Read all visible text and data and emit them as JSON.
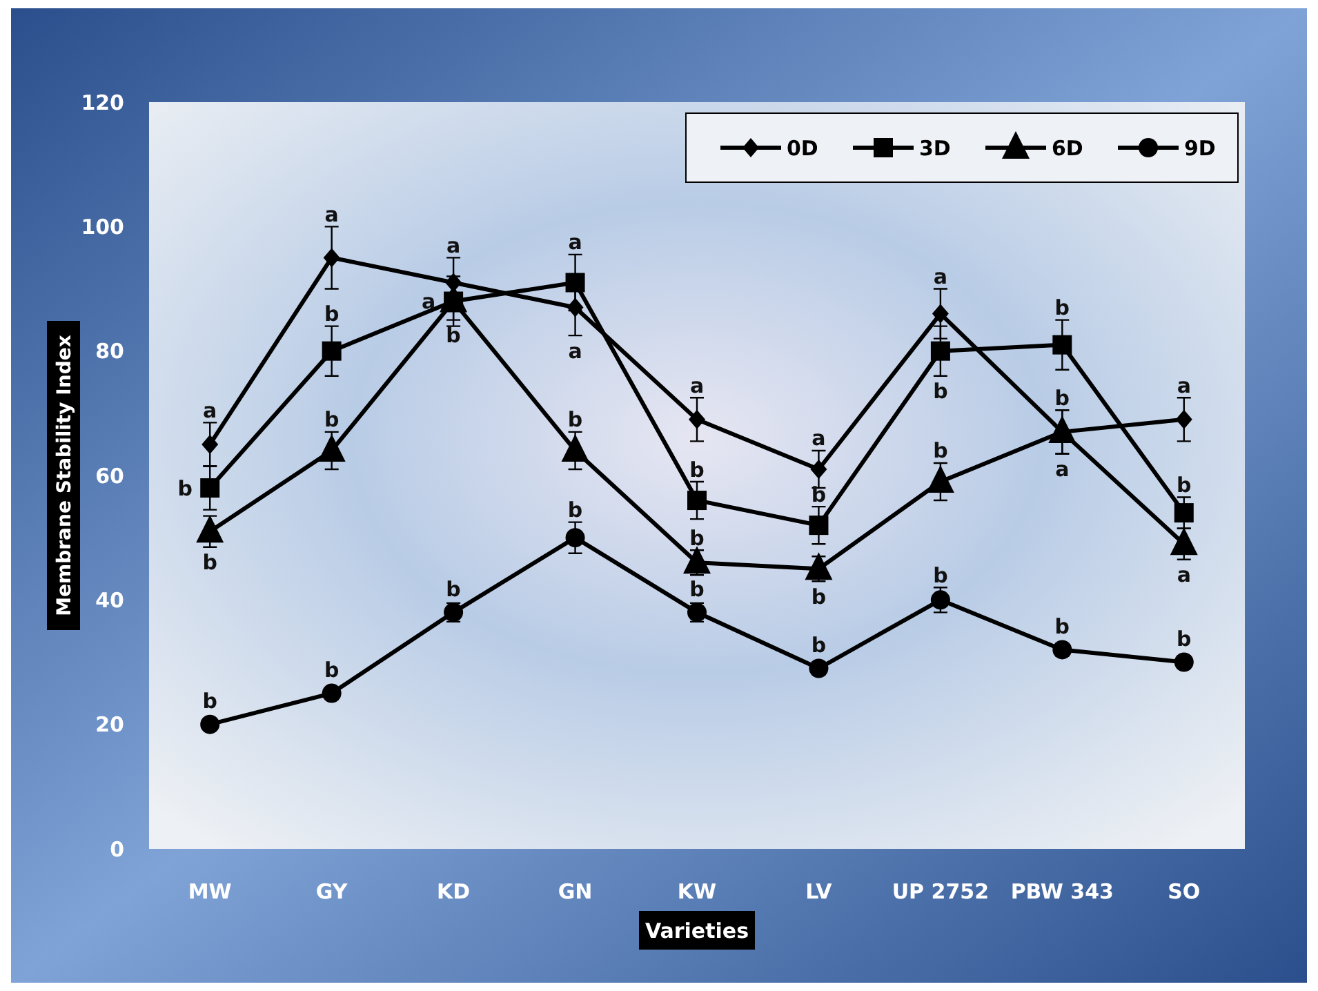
{
  "chart_data": {
    "type": "line",
    "xlabel": "Varieties",
    "ylabel": "Membrane Stability Index",
    "categories": [
      "MW",
      "GY",
      "KD",
      "GN",
      "KW",
      "LV",
      "UP 2752",
      "PBW 343",
      "SO"
    ],
    "ylim": [
      0,
      120
    ],
    "yticks": [
      0,
      20,
      40,
      60,
      80,
      100,
      120
    ],
    "grid": false,
    "legend": "top right",
    "line_style": "solid",
    "series": [
      {
        "name": "0D",
        "color": "#000000",
        "marker": "diamond",
        "values": [
          65,
          95,
          91,
          87,
          69,
          61,
          86,
          67,
          69
        ],
        "errors": [
          3.5,
          5,
          4,
          4.5,
          3.5,
          3,
          4,
          3.5,
          3.5
        ]
      },
      {
        "name": "3D",
        "color": "#000000",
        "marker": "square",
        "values": [
          58,
          80,
          88,
          91,
          56,
          52,
          80,
          81,
          54
        ],
        "errors": [
          3.5,
          4,
          4,
          4.5,
          3,
          3,
          4,
          4,
          2.5
        ]
      },
      {
        "name": "6D",
        "color": "#000000",
        "marker": "triangle",
        "values": [
          51,
          64,
          88,
          64,
          46,
          45,
          59,
          67,
          49
        ],
        "errors": [
          2.5,
          3,
          3,
          3,
          2,
          2,
          3,
          3.5,
          2.5
        ]
      },
      {
        "name": "9D",
        "color": "#000000",
        "marker": "circle",
        "values": [
          20,
          25,
          38,
          50,
          38,
          29,
          40,
          32,
          30
        ],
        "errors": [
          0.5,
          0.5,
          1.5,
          2.5,
          1.5,
          1,
          2,
          1,
          1
        ]
      }
    ],
    "annotations": [
      {
        "text": "a",
        "x": "MW",
        "y": 65
      },
      {
        "text": "b",
        "x": "MW",
        "y": 58
      },
      {
        "text": "b",
        "x": "MW",
        "y": 51
      },
      {
        "text": "b",
        "x": "MW",
        "y": 20
      },
      {
        "text": "a",
        "x": "GY",
        "y": 95
      },
      {
        "text": "b",
        "x": "GY",
        "y": 80
      },
      {
        "text": "b",
        "x": "GY",
        "y": 64
      },
      {
        "text": "b",
        "x": "GY",
        "y": 25
      },
      {
        "text": "a",
        "x": "KD",
        "y": 91
      },
      {
        "text": "b",
        "x": "KD",
        "y": 88
      },
      {
        "text": "a",
        "x": "KD",
        "y": 88
      },
      {
        "text": "b",
        "x": "KD",
        "y": 38
      },
      {
        "text": "a",
        "x": "GN",
        "y": 91
      },
      {
        "text": "a",
        "x": "GN",
        "y": 87
      },
      {
        "text": "b",
        "x": "GN",
        "y": 64
      },
      {
        "text": "b",
        "x": "GN",
        "y": 50
      },
      {
        "text": "a",
        "x": "KW",
        "y": 69
      },
      {
        "text": "b",
        "x": "KW",
        "y": 56
      },
      {
        "text": "b",
        "x": "KW",
        "y": 46
      },
      {
        "text": "b",
        "x": "KW",
        "y": 38
      },
      {
        "text": "a",
        "x": "LV",
        "y": 61
      },
      {
        "text": "b",
        "x": "LV",
        "y": 52
      },
      {
        "text": "b",
        "x": "LV",
        "y": 45
      },
      {
        "text": "b",
        "x": "LV",
        "y": 29
      },
      {
        "text": "a",
        "x": "UP 2752",
        "y": 86
      },
      {
        "text": "b",
        "x": "UP 2752",
        "y": 80
      },
      {
        "text": "b",
        "x": "UP 2752",
        "y": 59
      },
      {
        "text": "b",
        "x": "UP 2752",
        "y": 40
      },
      {
        "text": "b",
        "x": "PBW 343",
        "y": 81
      },
      {
        "text": "b",
        "x": "PBW 343",
        "y": 67
      },
      {
        "text": "a",
        "x": "PBW 343",
        "y": 67
      },
      {
        "text": "b",
        "x": "PBW 343",
        "y": 32
      },
      {
        "text": "a",
        "x": "SO",
        "y": 69
      },
      {
        "text": "b",
        "x": "SO",
        "y": 54
      },
      {
        "text": "a",
        "x": "SO",
        "y": 49
      },
      {
        "text": "b",
        "x": "SO",
        "y": 30
      }
    ]
  }
}
